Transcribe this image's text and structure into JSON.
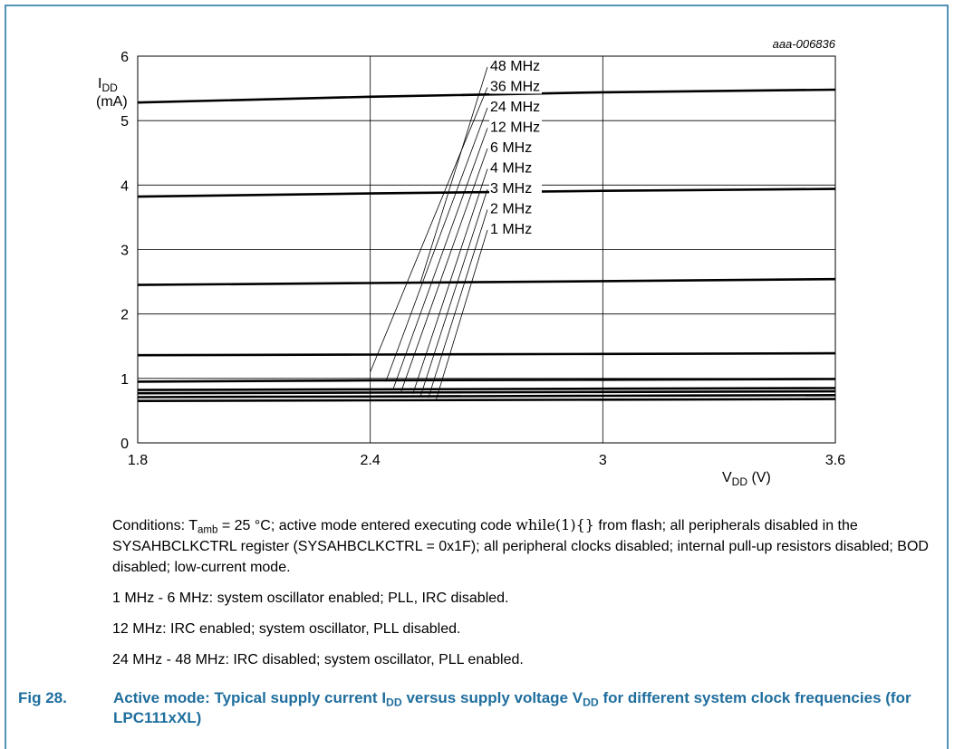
{
  "chart_data": {
    "type": "line",
    "reference": "aaa-006836",
    "ylabel_main": "I",
    "ylabel_sub": "DD",
    "ylabel_unit": "(mA)",
    "xlabel_main": "V",
    "xlabel_sub": "DD",
    "xlabel_unit": " (V)",
    "xlim": [
      1.8,
      3.6
    ],
    "ylim": [
      0,
      6
    ],
    "x_ticks": [
      1.8,
      2.4,
      3,
      3.6
    ],
    "x_tick_labels": [
      "1.8",
      "2.4",
      "3",
      "3.6"
    ],
    "y_ticks": [
      0,
      1,
      2,
      3,
      4,
      5,
      6
    ],
    "y_tick_labels": [
      "0",
      "1",
      "2",
      "3",
      "4",
      "5",
      "6"
    ],
    "grid": true,
    "x": [
      1.8,
      2.4,
      3.0,
      3.6
    ],
    "series": [
      {
        "name": "48 MHz",
        "values": [
          5.28,
          5.37,
          5.44,
          5.48
        ],
        "label_anchor": [
          2.53,
          2.5
        ]
      },
      {
        "name": "36 MHz",
        "values": [
          3.82,
          3.87,
          3.91,
          3.94
        ],
        "label_anchor": [
          2.4,
          1.1
        ]
      },
      {
        "name": "24 MHz",
        "values": [
          2.45,
          2.48,
          2.51,
          2.54
        ],
        "label_anchor": [
          2.44,
          0.95
        ]
      },
      {
        "name": "12 MHz",
        "values": [
          1.36,
          1.37,
          1.38,
          1.39
        ],
        "label_anchor": [
          2.46,
          0.85
        ]
      },
      {
        "name": "6 MHz",
        "values": [
          0.95,
          0.97,
          0.98,
          0.99
        ],
        "label_anchor": [
          2.48,
          0.8
        ]
      },
      {
        "name": "4 MHz",
        "values": [
          0.82,
          0.83,
          0.84,
          0.85
        ],
        "label_anchor": [
          2.51,
          0.76
        ]
      },
      {
        "name": "3 MHz",
        "values": [
          0.77,
          0.78,
          0.79,
          0.8
        ],
        "label_anchor": [
          2.53,
          0.73
        ]
      },
      {
        "name": "2 MHz",
        "values": [
          0.71,
          0.72,
          0.73,
          0.74
        ],
        "label_anchor": [
          2.55,
          0.7
        ]
      },
      {
        "name": "1 MHz",
        "values": [
          0.65,
          0.66,
          0.67,
          0.68
        ],
        "label_anchor": [
          2.57,
          0.67
        ]
      }
    ]
  },
  "notes": {
    "conditions_1": "Conditions: T",
    "conditions_sub": "amb",
    "conditions_2": " = 25 °C; active mode entered executing code ",
    "conditions_code": "while(1){}",
    "conditions_3": " from flash; all peripherals disabled in the SYSAHBCLKCTRL register (SYSAHBCLKCTRL = 0x1F); all peripheral clocks disabled; internal pull-up resistors disabled; BOD disabled; low-current mode.",
    "line_1": "1 MHz - 6 MHz: system oscillator enabled; PLL, IRC disabled.",
    "line_2": "12 MHz: IRC enabled; system oscillator, PLL disabled.",
    "line_3": "24 MHz - 48 MHz: IRC disabled; system oscillator, PLL enabled."
  },
  "caption": {
    "fig": "Fig 28.",
    "t1": "Active mode: Typical supply current I",
    "s1": "DD",
    "t2": " versus supply voltage V",
    "s2": "DD",
    "t3": " for different system clock frequencies (for LPC111xXL)"
  },
  "colors": {
    "frame": "#1f6e9e",
    "caption": "#1f6e9e",
    "curve": "#000000"
  }
}
